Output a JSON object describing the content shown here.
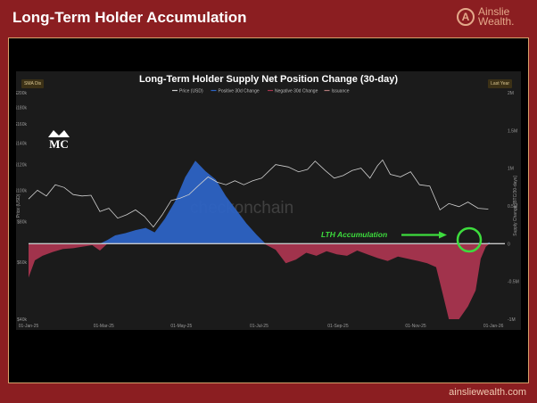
{
  "header": {
    "title": "Long-Term Holder Accumulation"
  },
  "brand": {
    "line1": "Ainslie",
    "line2": "Wealth.",
    "monogram": "A",
    "url": "ainsliewealth.com"
  },
  "controls": {
    "left_chip": "SMA Dis",
    "right_chip": "Last Year"
  },
  "watermark": {
    "text": "checkonchain",
    "logo_text": "MC"
  },
  "annotation": {
    "text": "LTH Accumulation"
  },
  "colors": {
    "background": "#8b1e21",
    "panel": "#1b1b1b",
    "positive": "#2d63c4",
    "negative": "#a9354f",
    "price": "#cfcfcf",
    "annotation": "#3ddc3d",
    "zero_line": "#c8c8c8"
  },
  "chart_data": {
    "type": "area",
    "title": "Long-Term Holder Supply Net Position Change (30-day)",
    "legend": [
      "Price (USD)",
      "Positive 30d Change",
      "Negative 30d Change",
      "Issuance"
    ],
    "legend_position": "top",
    "grid": false,
    "x_ticks": [
      "01-Jan-25",
      "01-Mar-25",
      "01-May-25",
      "01-Jul-25",
      "01-Sep-25",
      "01-Nov-25",
      "01-Jan-26"
    ],
    "x_range": [
      "2025-01-01",
      "2026-01-10"
    ],
    "y_left": {
      "scale": "log",
      "label": "Price (USD)",
      "range": [
        40000,
        200000
      ],
      "ticks": [
        "$40k",
        "$60k",
        "$80k",
        "$100k",
        "$120k",
        "$140k",
        "$160k",
        "$180k",
        "$200k"
      ]
    },
    "y_right": {
      "label": "Supply Change [BTC/30-days]",
      "range": [
        -1000000,
        2000000
      ],
      "ticks": [
        "-1M",
        "-0.5M",
        "0",
        "0.5M",
        "1M",
        "1.5M",
        "2M"
      ]
    },
    "series": [
      {
        "name": "Price (USD)",
        "axis": "left",
        "points": [
          [
            "2025-01-01",
            94000
          ],
          [
            "2025-01-08",
            100000
          ],
          [
            "2025-01-15",
            96000
          ],
          [
            "2025-01-22",
            104000
          ],
          [
            "2025-01-29",
            102000
          ],
          [
            "2025-02-05",
            97000
          ],
          [
            "2025-02-12",
            96000
          ],
          [
            "2025-02-19",
            96500
          ],
          [
            "2025-02-26",
            86000
          ],
          [
            "2025-03-05",
            88000
          ],
          [
            "2025-03-12",
            82000
          ],
          [
            "2025-03-19",
            84000
          ],
          [
            "2025-03-26",
            87000
          ],
          [
            "2025-04-02",
            83000
          ],
          [
            "2025-04-09",
            77000
          ],
          [
            "2025-04-16",
            84000
          ],
          [
            "2025-04-23",
            93000
          ],
          [
            "2025-04-30",
            94500
          ],
          [
            "2025-05-07",
            97000
          ],
          [
            "2025-05-14",
            103000
          ],
          [
            "2025-05-22",
            110000
          ],
          [
            "2025-05-29",
            106000
          ],
          [
            "2025-06-05",
            104000
          ],
          [
            "2025-06-12",
            107000
          ],
          [
            "2025-06-19",
            104000
          ],
          [
            "2025-06-26",
            107000
          ],
          [
            "2025-07-03",
            109000
          ],
          [
            "2025-07-14",
            120000
          ],
          [
            "2025-07-24",
            118000
          ],
          [
            "2025-08-01",
            114000
          ],
          [
            "2025-08-08",
            116000
          ],
          [
            "2025-08-14",
            123000
          ],
          [
            "2025-08-22",
            115000
          ],
          [
            "2025-08-29",
            109000
          ],
          [
            "2025-09-05",
            111000
          ],
          [
            "2025-09-12",
            115000
          ],
          [
            "2025-09-19",
            117000
          ],
          [
            "2025-09-26",
            109000
          ],
          [
            "2025-10-02",
            119000
          ],
          [
            "2025-10-06",
            124000
          ],
          [
            "2025-10-12",
            112000
          ],
          [
            "2025-10-20",
            110000
          ],
          [
            "2025-10-28",
            114000
          ],
          [
            "2025-11-04",
            104000
          ],
          [
            "2025-11-12",
            103000
          ],
          [
            "2025-11-20",
            87000
          ],
          [
            "2025-11-27",
            91000
          ],
          [
            "2025-12-05",
            89000
          ],
          [
            "2025-12-12",
            92000
          ],
          [
            "2025-12-20",
            88000
          ],
          [
            "2025-12-28",
            87500
          ]
        ]
      },
      {
        "name": "30d Change",
        "axis": "right",
        "points": [
          [
            "2025-01-01",
            -450000
          ],
          [
            "2025-01-06",
            -220000
          ],
          [
            "2025-01-12",
            -160000
          ],
          [
            "2025-01-20",
            -110000
          ],
          [
            "2025-01-28",
            -70000
          ],
          [
            "2025-02-05",
            -60000
          ],
          [
            "2025-02-12",
            -40000
          ],
          [
            "2025-02-20",
            -20000
          ],
          [
            "2025-02-26",
            -90000
          ],
          [
            "2025-03-04",
            50000
          ],
          [
            "2025-03-10",
            110000
          ],
          [
            "2025-03-18",
            140000
          ],
          [
            "2025-03-26",
            180000
          ],
          [
            "2025-04-03",
            210000
          ],
          [
            "2025-04-10",
            150000
          ],
          [
            "2025-04-18",
            330000
          ],
          [
            "2025-04-26",
            560000
          ],
          [
            "2025-05-04",
            880000
          ],
          [
            "2025-05-12",
            1100000
          ],
          [
            "2025-05-20",
            960000
          ],
          [
            "2025-05-28",
            850000
          ],
          [
            "2025-06-05",
            630000
          ],
          [
            "2025-06-13",
            450000
          ],
          [
            "2025-06-21",
            270000
          ],
          [
            "2025-06-29",
            120000
          ],
          [
            "2025-07-06",
            -10000
          ],
          [
            "2025-07-14",
            -80000
          ],
          [
            "2025-07-22",
            -260000
          ],
          [
            "2025-07-30",
            -210000
          ],
          [
            "2025-08-07",
            -120000
          ],
          [
            "2025-08-15",
            -160000
          ],
          [
            "2025-08-23",
            -100000
          ],
          [
            "2025-08-31",
            -140000
          ],
          [
            "2025-09-08",
            -160000
          ],
          [
            "2025-09-16",
            -90000
          ],
          [
            "2025-09-24",
            -140000
          ],
          [
            "2025-10-02",
            -190000
          ],
          [
            "2025-10-10",
            -230000
          ],
          [
            "2025-10-18",
            -170000
          ],
          [
            "2025-10-26",
            -200000
          ],
          [
            "2025-11-03",
            -230000
          ],
          [
            "2025-11-10",
            -260000
          ],
          [
            "2025-11-17",
            -310000
          ],
          [
            "2025-11-22",
            -650000
          ],
          [
            "2025-11-27",
            -1000000
          ],
          [
            "2025-12-05",
            -1000000
          ],
          [
            "2025-12-12",
            -830000
          ],
          [
            "2025-12-18",
            -620000
          ],
          [
            "2025-12-22",
            -200000
          ],
          [
            "2025-12-26",
            -40000
          ],
          [
            "2025-12-29",
            20000
          ]
        ]
      }
    ]
  }
}
